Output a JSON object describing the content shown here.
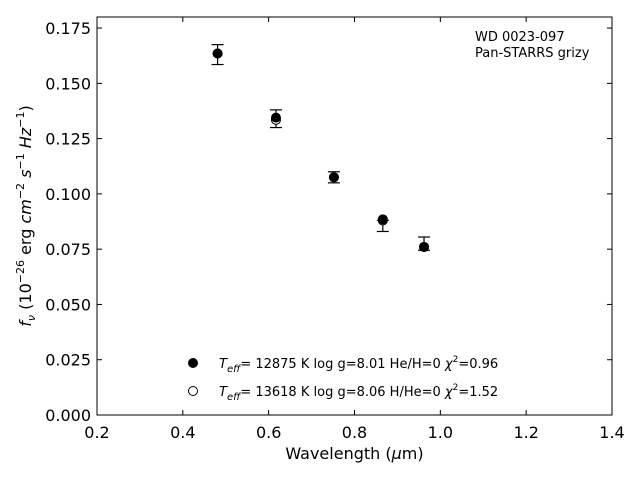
{
  "chart_data": {
    "type": "scatter",
    "annotation": [
      "WD 0023-097",
      "Pan-STARRS grizy"
    ],
    "xlabel": "Wavelength (μm)",
    "ylabel": "f_ν (10^-26 erg cm^-2 s^-1 Hz^-1)",
    "xlim": [
      0.2,
      1.4
    ],
    "ylim": [
      0.0,
      0.18
    ],
    "xticks": [
      0.2,
      0.4,
      0.6,
      0.8,
      1.0,
      1.2,
      1.4
    ],
    "xtick_labels": [
      "0.2",
      "0.4",
      "0.6",
      "0.8",
      "1.0",
      "1.2",
      "1.4"
    ],
    "yticks": [
      0.0,
      0.025,
      0.05,
      0.075,
      0.1,
      0.125,
      0.15,
      0.175
    ],
    "ytick_labels": [
      "0.000",
      "0.025",
      "0.050",
      "0.075",
      "0.100",
      "0.125",
      "0.150",
      "0.175"
    ],
    "grid": false,
    "legend_placement": "lower-center",
    "observed": {
      "x": [
        0.481,
        0.617,
        0.752,
        0.866,
        0.962
      ],
      "y": [
        0.163,
        0.134,
        0.1075,
        0.0855,
        0.0775
      ],
      "yerr_low": [
        0.0045,
        0.004,
        0.0025,
        0.0025,
        0.003
      ],
      "yerr_high": [
        0.0045,
        0.004,
        0.0025,
        0.0025,
        0.003
      ]
    },
    "series": [
      {
        "name": "T_eff= 12875 K  log g=8.01  He/H=0  χ²=0.96",
        "marker": "filled",
        "x": [
          0.481,
          0.617,
          0.752,
          0.866,
          0.962
        ],
        "y": [
          0.1635,
          0.1345,
          0.1075,
          0.0885,
          0.076
        ]
      },
      {
        "name": "T_eff= 13618 K  log g=8.06  H/He=0  χ²=1.52",
        "marker": "open",
        "x": [
          0.481,
          0.617,
          0.752,
          0.866,
          0.962
        ],
        "y": [
          0.1635,
          0.1335,
          0.1075,
          0.088,
          0.076
        ]
      }
    ]
  }
}
